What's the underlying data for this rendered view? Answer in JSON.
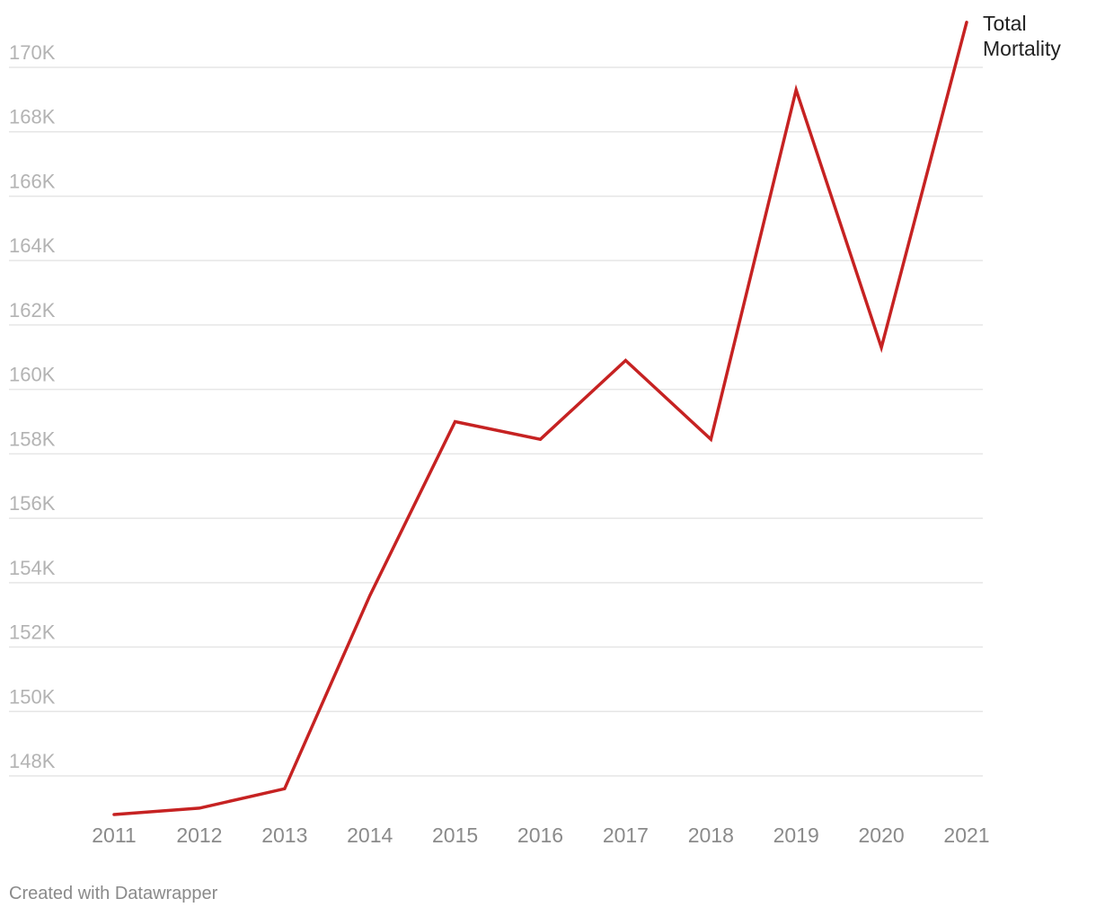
{
  "chart_data": {
    "type": "line",
    "title": "",
    "xlabel": "",
    "ylabel": "",
    "x": [
      "2011",
      "2012",
      "2013",
      "2014",
      "2015",
      "2016",
      "2017",
      "2018",
      "2019",
      "2020",
      "2021"
    ],
    "series": [
      {
        "name": "Total Mortality",
        "label_lines": [
          "Total",
          "Mortality"
        ],
        "color": "#c62222",
        "values": [
          146800,
          147000,
          147600,
          153600,
          159000,
          158450,
          160900,
          158450,
          169300,
          161300,
          171400
        ]
      }
    ],
    "y_ticks": [
      148000,
      150000,
      152000,
      154000,
      156000,
      158000,
      160000,
      162000,
      164000,
      166000,
      168000,
      170000
    ],
    "y_tick_labels": [
      "148K",
      "150K",
      "152K",
      "154K",
      "156K",
      "158K",
      "160K",
      "162K",
      "164K",
      "166K",
      "168K",
      "170K"
    ],
    "ylim": [
      146500,
      171500
    ],
    "grid": true,
    "legend": "none"
  },
  "footer": {
    "credit": "Created with Datawrapper"
  }
}
